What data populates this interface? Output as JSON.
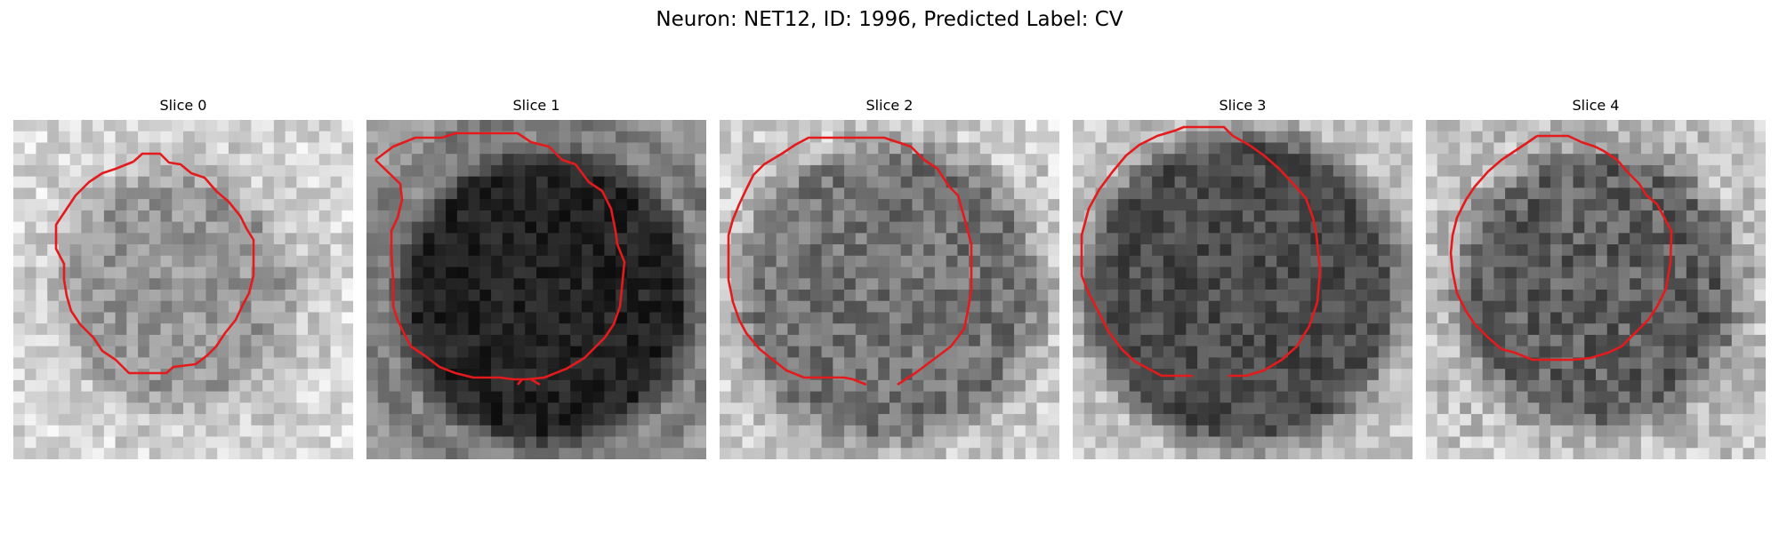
{
  "figure": {
    "title": "Neuron: NET12, ID: 1996, Predicted Label: CV"
  },
  "colors": {
    "contour": "#e41a1c",
    "background": "#ffffff"
  },
  "slices": [
    {
      "title": "Slice 0"
    },
    {
      "title": "Slice 1"
    },
    {
      "title": "Slice 2"
    },
    {
      "title": "Slice 3"
    },
    {
      "title": "Slice 4"
    }
  ]
}
